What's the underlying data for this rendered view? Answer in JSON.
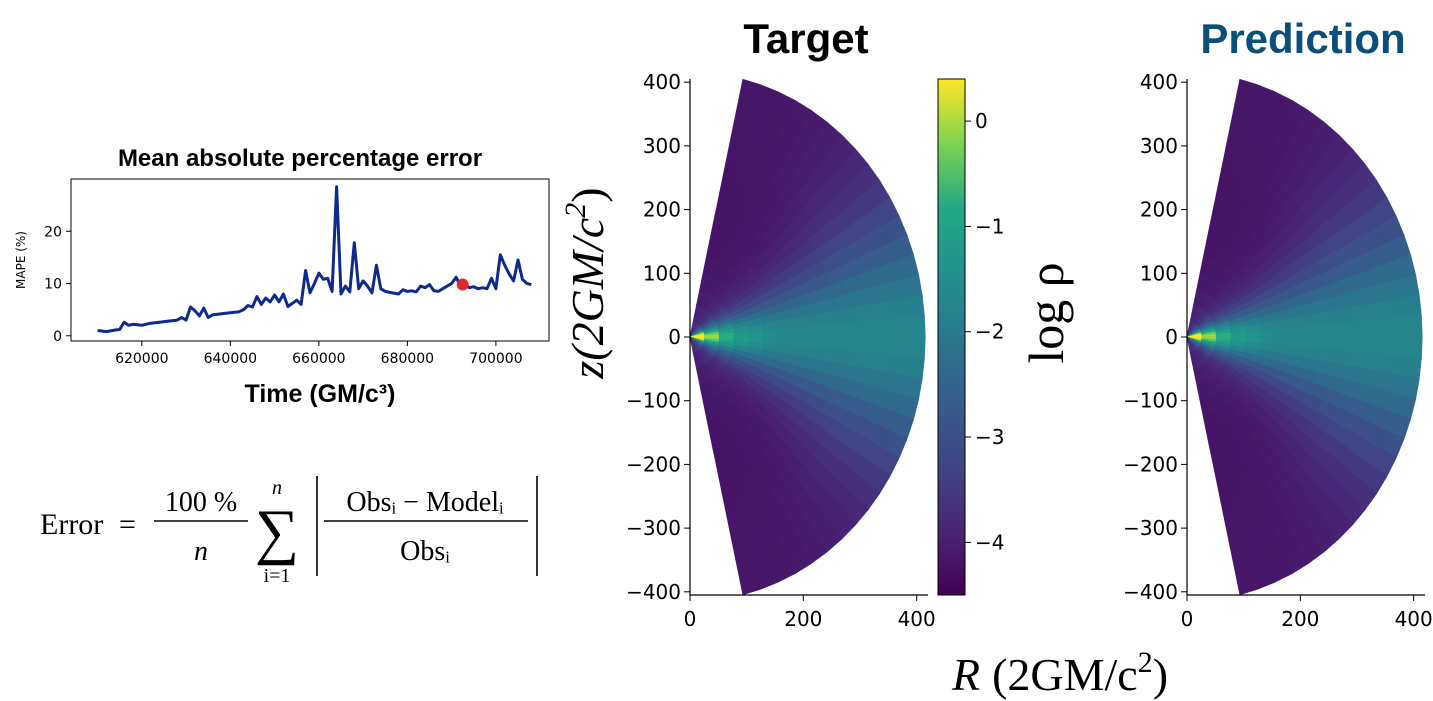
{
  "colors": {
    "series": "#0e2a8c",
    "marker": "#e0282a",
    "prediction_title": "#0a4e7a",
    "text": "#000000"
  },
  "chart_data": [
    {
      "type": "line",
      "title": "Mean absolute percentage error",
      "xlabel": "Time (GM/c³)",
      "ylabel": "MAPE (%)",
      "xlim": [
        604000,
        712000
      ],
      "ylim": [
        -1,
        30
      ],
      "xticks": [
        620000,
        640000,
        660000,
        680000,
        700000
      ],
      "xtick_labels": [
        "620000",
        "640000",
        "660000",
        "680000",
        "700000"
      ],
      "yticks": [
        0,
        10,
        20
      ],
      "ytick_labels": [
        "0",
        "10",
        "20"
      ],
      "series": [
        {
          "name": "MAPE",
          "x": [
            610000,
            612000,
            614000,
            615000,
            616000,
            617000,
            618000,
            620000,
            622000,
            624000,
            626000,
            628000,
            629000,
            630000,
            631000,
            632000,
            633000,
            634000,
            635000,
            636000,
            638000,
            640000,
            642000,
            643000,
            644000,
            645000,
            646000,
            647000,
            648000,
            649000,
            650000,
            651000,
            652000,
            653000,
            654000,
            655000,
            656000,
            657000,
            658000,
            659000,
            660000,
            661000,
            662000,
            663000,
            664000,
            665000,
            666000,
            667000,
            668000,
            669000,
            670000,
            671000,
            672000,
            673000,
            674000,
            675000,
            676000,
            678000,
            679000,
            680000,
            681000,
            682000,
            683000,
            684000,
            685000,
            686000,
            687000,
            688000,
            689000,
            690000,
            691000,
            692000,
            693000,
            694000,
            695000,
            696000,
            697000,
            698000,
            699000,
            700000,
            701000,
            702000,
            703000,
            704000,
            705000,
            706000,
            707000,
            708000
          ],
          "y": [
            1.0,
            0.8,
            1.1,
            1.2,
            2.6,
            2.0,
            2.2,
            2.0,
            2.4,
            2.6,
            2.8,
            3.0,
            3.5,
            3.0,
            5.5,
            4.8,
            3.8,
            5.3,
            3.5,
            4.0,
            4.2,
            4.4,
            4.6,
            5.0,
            5.8,
            5.5,
            7.5,
            6.0,
            7.2,
            6.5,
            7.8,
            6.5,
            8.0,
            5.6,
            6.2,
            6.8,
            6.0,
            12.5,
            8.2,
            10.0,
            12.0,
            10.8,
            11.0,
            8.5,
            28.5,
            8.0,
            9.5,
            8.4,
            17.8,
            9.0,
            10.5,
            9.5,
            8.2,
            13.5,
            9.0,
            8.5,
            8.3,
            8.0,
            8.8,
            8.5,
            8.6,
            8.4,
            9.5,
            9.2,
            9.8,
            8.6,
            8.5,
            9.0,
            9.5,
            10.0,
            11.2,
            9.5,
            9.8,
            9.2,
            9.4,
            9.0,
            9.2,
            9.0,
            11.0,
            9.0,
            15.5,
            13.5,
            11.8,
            10.5,
            14.5,
            10.8,
            10.0,
            9.8
          ]
        }
      ],
      "highlight_point": {
        "x": 692500,
        "y": 9.8
      }
    },
    {
      "type": "heatmap",
      "title": "Target",
      "xlabel": "R (2GM/c²)",
      "ylabel": "z(2GM/c²)",
      "xlim": [
        0,
        420
      ],
      "ylim": [
        -405,
        405
      ],
      "xticks": [
        0,
        200,
        400
      ],
      "xtick_labels": [
        "0",
        "200",
        "400"
      ],
      "yticks": [
        400,
        300,
        200,
        100,
        0,
        -100,
        -200,
        -300,
        -400
      ],
      "ytick_labels": [
        "400",
        "300",
        "200",
        "100",
        "0",
        "−100",
        "−200",
        "−300",
        "−400"
      ],
      "field": "log ρ",
      "domain": {
        "r_max": 415,
        "theta_min_deg": 13,
        "theta_max_deg": 167
      },
      "colormap": "viridis"
    },
    {
      "type": "colorbar",
      "label": "log ρ",
      "range": [
        -4.5,
        0.4
      ],
      "ticks": [
        0,
        -1,
        -2,
        -3,
        -4
      ],
      "tick_labels": [
        "0",
        "−1",
        "−2",
        "−3",
        "−4"
      ]
    },
    {
      "type": "heatmap",
      "title": "Prediction",
      "xlabel": "R (2GM/c²)",
      "ylabel": "",
      "xlim": [
        0,
        420
      ],
      "ylim": [
        -405,
        405
      ],
      "xticks": [
        0,
        200,
        400
      ],
      "xtick_labels": [
        "0",
        "200",
        "400"
      ],
      "yticks": [
        400,
        300,
        200,
        100,
        0,
        -100,
        -200,
        -300,
        -400
      ],
      "ytick_labels": [
        "400",
        "300",
        "200",
        "100",
        "0",
        "−100",
        "−200",
        "−300",
        "−400"
      ],
      "field": "log ρ",
      "domain": {
        "r_max": 415,
        "theta_min_deg": 13,
        "theta_max_deg": 167
      },
      "colormap": "viridis"
    }
  ],
  "formula": {
    "lhs": "Error",
    "equals": "=",
    "numerator": "100 %",
    "denominator": "n",
    "sum_symbol": "∑",
    "sum_upper": "n",
    "sum_lower": "i=1",
    "inner_numerator": "Obsᵢ − Modelᵢ",
    "inner_denominator": "Obsᵢ"
  },
  "shared_xlabel_main": "R",
  "shared_xlabel_units": "(2GM/c",
  "shared_xlabel_sup": "2",
  "shared_xlabel_close": ")",
  "ylabel_main": "z(2GM/c",
  "ylabel_sup": "2",
  "ylabel_close": ")",
  "cbar_label": "log ρ"
}
